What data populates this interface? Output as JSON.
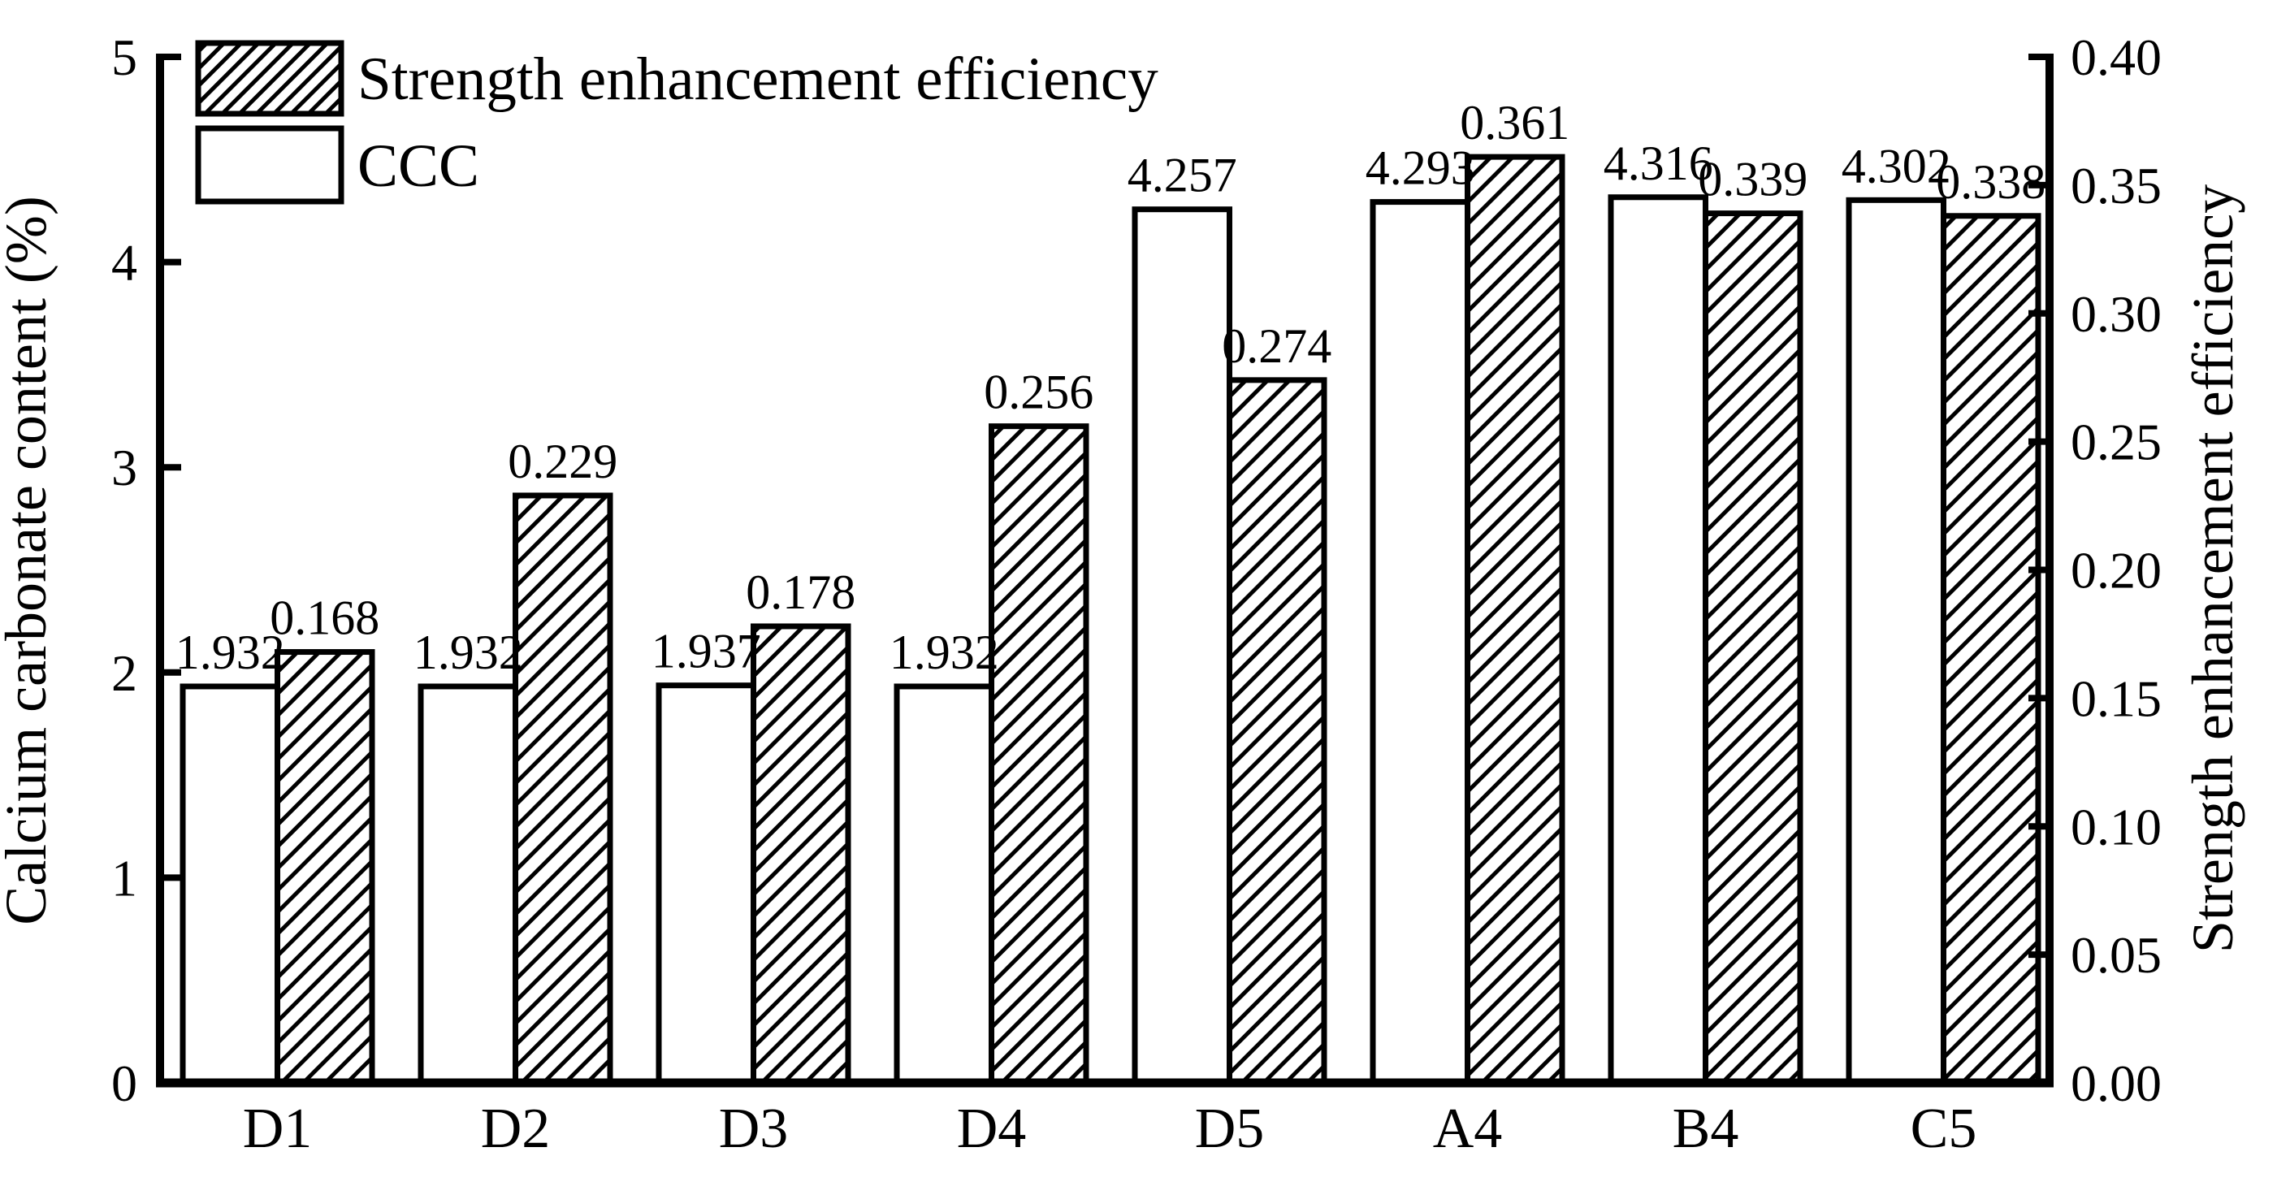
{
  "colors": {
    "ink": "#000000",
    "background": "#ffffff",
    "bar_fill_plain": "#ffffff"
  },
  "chart_data": {
    "type": "bar",
    "categories": [
      "D1",
      "D2",
      "D3",
      "D4",
      "D5",
      "A4",
      "B4",
      "C5"
    ],
    "series": [
      {
        "name": "CCC",
        "axis": "left",
        "style": "plain",
        "values": [
          1.932,
          1.932,
          1.937,
          1.932,
          4.257,
          4.293,
          4.316,
          4.302
        ],
        "labels": [
          "1.932",
          "1.932",
          "1.937",
          "1.932",
          "4.257",
          "4.293",
          "4.316",
          "4.302"
        ]
      },
      {
        "name": "Strength enhancement efficiency",
        "axis": "right",
        "style": "hatched",
        "values": [
          0.168,
          0.229,
          0.178,
          0.256,
          0.274,
          0.361,
          0.339,
          0.338
        ],
        "labels": [
          "0.168",
          "0.229",
          "0.178",
          "0.256",
          "0.274",
          "0.361",
          "0.339",
          "0.338"
        ]
      }
    ],
    "left_axis": {
      "label": "Calcium carbonate content (%)",
      "min": 0,
      "max": 5,
      "tick_labels": [
        "0",
        "1",
        "2",
        "3",
        "4",
        "5"
      ],
      "tick_values": [
        0,
        1,
        2,
        3,
        4,
        5
      ]
    },
    "right_axis": {
      "label": "Strength enhancement efficiency",
      "min": 0.0,
      "max": 0.4,
      "tick_labels": [
        "0.00",
        "0.05",
        "0.10",
        "0.15",
        "0.20",
        "0.25",
        "0.30",
        "0.35",
        "0.40"
      ],
      "tick_values": [
        0.0,
        0.05,
        0.1,
        0.15,
        0.2,
        0.25,
        0.3,
        0.35,
        0.4
      ]
    },
    "legend": {
      "position": "top-left",
      "entries": [
        {
          "label": "Strength enhancement efficiency",
          "style": "hatched"
        },
        {
          "label": "CCC",
          "style": "plain"
        }
      ]
    },
    "grid": false
  }
}
